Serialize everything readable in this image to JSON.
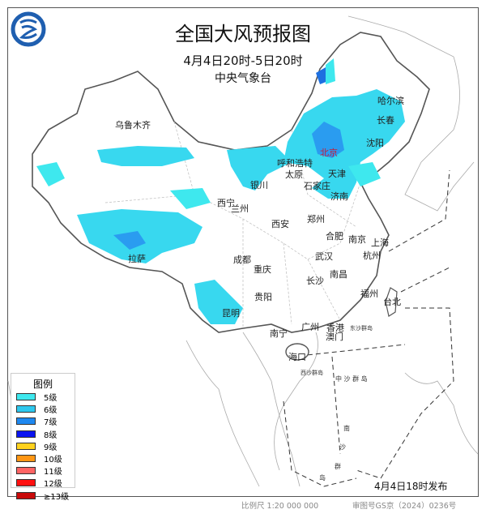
{
  "header": {
    "title": "全国大风预报图",
    "period": "4月4日20时-5日20时",
    "agency": "中央气象台"
  },
  "logo": {
    "icon": "cma-logo",
    "color": "#1f5fb0"
  },
  "cities": [
    {
      "name": "乌鲁木齐"
    },
    {
      "name": "哈尔滨"
    },
    {
      "name": "长春"
    },
    {
      "name": "沈阳"
    },
    {
      "name": "呼和浩特"
    },
    {
      "name": "北京",
      "capital": true
    },
    {
      "name": "天津"
    },
    {
      "name": "太原"
    },
    {
      "name": "石家庄"
    },
    {
      "name": "济南"
    },
    {
      "name": "银川"
    },
    {
      "name": "西宁"
    },
    {
      "name": "兰州"
    },
    {
      "name": "西安"
    },
    {
      "name": "郑州"
    },
    {
      "name": "合肥"
    },
    {
      "name": "南京"
    },
    {
      "name": "上海"
    },
    {
      "name": "杭州"
    },
    {
      "name": "拉萨"
    },
    {
      "name": "成都"
    },
    {
      "name": "重庆"
    },
    {
      "name": "武汉"
    },
    {
      "name": "南昌"
    },
    {
      "name": "长沙"
    },
    {
      "name": "贵阳"
    },
    {
      "name": "福州"
    },
    {
      "name": "台北"
    },
    {
      "name": "昆明"
    },
    {
      "name": "南宁"
    },
    {
      "name": "广州"
    },
    {
      "name": "香港"
    },
    {
      "name": "澳门"
    },
    {
      "name": "海口"
    }
  ],
  "islands": {
    "dongsha": "东沙群岛",
    "xisha": "西沙群岛",
    "zhongsha": "中 沙 群 岛",
    "nansha": [
      "南",
      "沙",
      "群",
      "岛"
    ]
  },
  "legend": {
    "title": "图例",
    "items": [
      {
        "label": "5级",
        "color": "#3ee8ee"
      },
      {
        "label": "6级",
        "color": "#2ec8ee"
      },
      {
        "label": "7级",
        "color": "#1e88f0"
      },
      {
        "label": "8级",
        "color": "#0a14f0"
      },
      {
        "label": "9级",
        "color": "#ffd21e"
      },
      {
        "label": "10级",
        "color": "#ff9614"
      },
      {
        "label": "11级",
        "color": "#ff6464"
      },
      {
        "label": "12级",
        "color": "#ff1010"
      },
      {
        "label": "≥13级",
        "color": "#c80a0a"
      }
    ]
  },
  "footer": {
    "issued": "4月4日18时发布",
    "scale": "比例尺 1:20 000 000",
    "approval": "审图号GS京（2024）0236号"
  }
}
